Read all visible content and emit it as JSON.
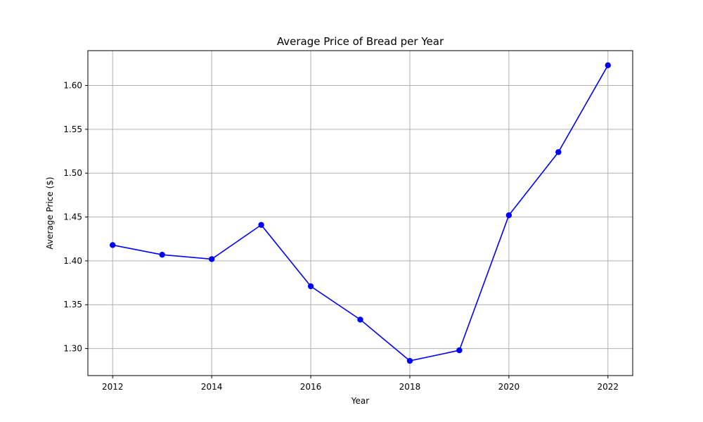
{
  "chart_data": {
    "type": "line",
    "title": "Average Price of Bread per Year",
    "xlabel": "Year",
    "ylabel": "Average Price ($)",
    "x": [
      2012,
      2013,
      2014,
      2015,
      2016,
      2017,
      2018,
      2019,
      2020,
      2021,
      2022
    ],
    "series": [
      {
        "name": "Average Price",
        "values": [
          1.418,
          1.407,
          1.402,
          1.441,
          1.371,
          1.333,
          1.286,
          1.298,
          1.452,
          1.524,
          1.623
        ],
        "color": "#0000ff",
        "marker": "circle"
      }
    ],
    "xlim": [
      2011.5,
      2022.5
    ],
    "ylim": [
      1.2692,
      1.6397
    ],
    "xticks": [
      2012,
      2014,
      2016,
      2018,
      2020,
      2022
    ],
    "xtick_labels": [
      "2012",
      "2014",
      "2016",
      "2018",
      "2020",
      "2022"
    ],
    "yticks": [
      1.3,
      1.35,
      1.4,
      1.45,
      1.5,
      1.55,
      1.6
    ],
    "ytick_labels": [
      "1.30",
      "1.35",
      "1.40",
      "1.45",
      "1.50",
      "1.55",
      "1.60"
    ],
    "grid": true,
    "legend": "none"
  }
}
